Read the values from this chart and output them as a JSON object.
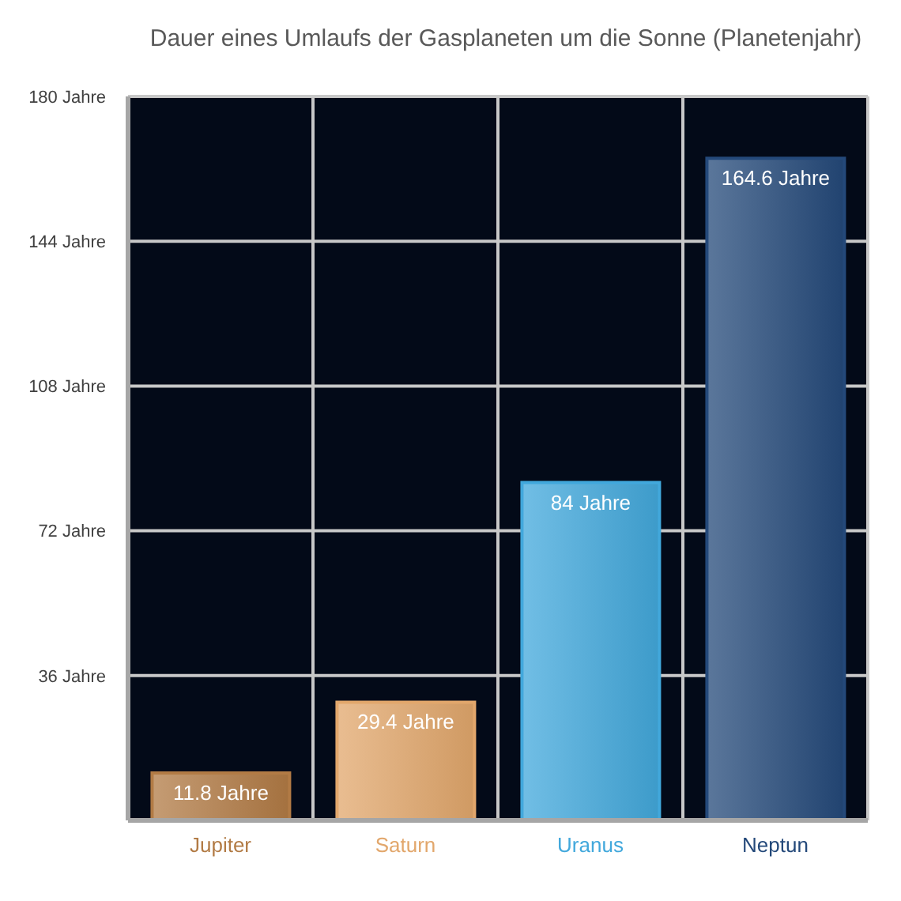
{
  "chart_data": {
    "type": "bar",
    "title": "Dauer eines Umlaufs der Gasplaneten um die Sonne (Planetenjahr)",
    "categories": [
      "Jupiter",
      "Saturn",
      "Uranus",
      "Neptun"
    ],
    "values": [
      11.8,
      29.4,
      84,
      164.6
    ],
    "colors": [
      "#b27b45",
      "#e2a76c",
      "#42a8dc",
      "#24497a"
    ],
    "value_labels": [
      "11.8 Jahre",
      "29.4 Jahre",
      "84 Jahre",
      "164.6 Jahre"
    ],
    "ylim": [
      0,
      180
    ],
    "yticks": [
      {
        "value": 36,
        "label": "36 Jahre"
      },
      {
        "value": 72,
        "label": "72 Jahre"
      },
      {
        "value": 108,
        "label": "108 Jahre"
      },
      {
        "value": 144,
        "label": "144 Jahre"
      },
      {
        "value": 180,
        "label": "180 Jahre"
      }
    ],
    "grid": true
  }
}
